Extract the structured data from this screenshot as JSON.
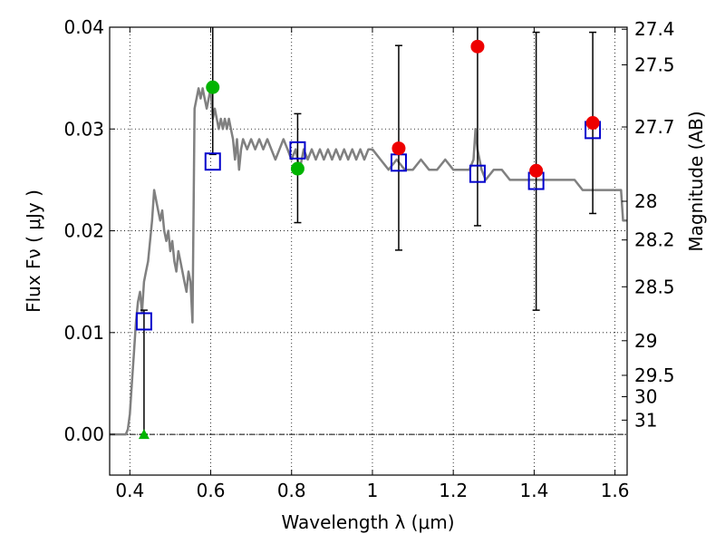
{
  "chart_data": {
    "type": "scatter",
    "title": "",
    "xlabel": "Wavelength  λ (μm)",
    "ylabel_left": "Flux  Fν ( μJy )",
    "ylabel_right": "Magnitude (AB)",
    "xlim": [
      0.35,
      1.63
    ],
    "ylim": [
      -0.004,
      0.04
    ],
    "grid": true,
    "x_ticks": [
      {
        "value": 0.4,
        "label": "0.4"
      },
      {
        "value": 0.6,
        "label": "0.6"
      },
      {
        "value": 0.8,
        "label": "0.8"
      },
      {
        "value": 1.0,
        "label": "1"
      },
      {
        "value": 1.2,
        "label": "1.2"
      },
      {
        "value": 1.4,
        "label": "1.4"
      },
      {
        "value": 1.6,
        "label": "1.6"
      }
    ],
    "y_ticks": [
      {
        "value": 0.0,
        "label": "0.00"
      },
      {
        "value": 0.01,
        "label": "0.01"
      },
      {
        "value": 0.02,
        "label": "0.02"
      },
      {
        "value": 0.03,
        "label": "0.03"
      },
      {
        "value": 0.04,
        "label": "0.04"
      }
    ],
    "mag_ticks": [
      {
        "flux": 0.0398,
        "label": "27.4"
      },
      {
        "flux": 0.0363,
        "label": "27.5"
      },
      {
        "flux": 0.0302,
        "label": "27.7"
      },
      {
        "flux": 0.0229,
        "label": "28"
      },
      {
        "flux": 0.0191,
        "label": "28.2"
      },
      {
        "flux": 0.0145,
        "label": "28.5"
      },
      {
        "flux": 0.0092,
        "label": "29"
      },
      {
        "flux": 0.0058,
        "label": "29.5"
      },
      {
        "flux": 0.0037,
        "label": "30"
      },
      {
        "flux": 0.0014,
        "label": "31"
      }
    ],
    "series": [
      {
        "name": "SED model",
        "kind": "line",
        "color": "#808080",
        "x": [
          0.35,
          0.39,
          0.395,
          0.4,
          0.405,
          0.41,
          0.415,
          0.42,
          0.425,
          0.43,
          0.435,
          0.44,
          0.445,
          0.45,
          0.455,
          0.46,
          0.465,
          0.47,
          0.475,
          0.48,
          0.485,
          0.49,
          0.495,
          0.5,
          0.505,
          0.51,
          0.515,
          0.52,
          0.525,
          0.53,
          0.535,
          0.54,
          0.545,
          0.55,
          0.555,
          0.56,
          0.565,
          0.57,
          0.575,
          0.58,
          0.585,
          0.59,
          0.595,
          0.6,
          0.605,
          0.61,
          0.615,
          0.62,
          0.625,
          0.63,
          0.635,
          0.64,
          0.645,
          0.65,
          0.655,
          0.66,
          0.665,
          0.67,
          0.675,
          0.68,
          0.69,
          0.7,
          0.71,
          0.72,
          0.73,
          0.74,
          0.75,
          0.76,
          0.77,
          0.78,
          0.79,
          0.8,
          0.81,
          0.82,
          0.83,
          0.84,
          0.85,
          0.86,
          0.87,
          0.88,
          0.89,
          0.9,
          0.91,
          0.92,
          0.93,
          0.94,
          0.95,
          0.96,
          0.97,
          0.98,
          0.99,
          1.0,
          1.02,
          1.04,
          1.06,
          1.08,
          1.1,
          1.12,
          1.14,
          1.16,
          1.18,
          1.2,
          1.22,
          1.24,
          1.25,
          1.255,
          1.26,
          1.27,
          1.28,
          1.3,
          1.32,
          1.34,
          1.36,
          1.38,
          1.4,
          1.42,
          1.44,
          1.46,
          1.48,
          1.5,
          1.52,
          1.54,
          1.56,
          1.58,
          1.6,
          1.61,
          1.615,
          1.62,
          1.63
        ],
        "y": [
          0.0,
          0.0,
          0.0005,
          0.002,
          0.005,
          0.008,
          0.011,
          0.013,
          0.014,
          0.012,
          0.015,
          0.016,
          0.017,
          0.019,
          0.021,
          0.024,
          0.023,
          0.022,
          0.021,
          0.022,
          0.02,
          0.019,
          0.02,
          0.018,
          0.019,
          0.017,
          0.016,
          0.018,
          0.017,
          0.016,
          0.015,
          0.014,
          0.016,
          0.015,
          0.011,
          0.032,
          0.033,
          0.034,
          0.033,
          0.034,
          0.033,
          0.032,
          0.033,
          0.034,
          0.031,
          0.032,
          0.031,
          0.03,
          0.031,
          0.03,
          0.031,
          0.03,
          0.031,
          0.03,
          0.029,
          0.027,
          0.029,
          0.026,
          0.028,
          0.029,
          0.028,
          0.029,
          0.028,
          0.029,
          0.028,
          0.029,
          0.028,
          0.027,
          0.028,
          0.029,
          0.028,
          0.027,
          0.028,
          0.026,
          0.028,
          0.027,
          0.028,
          0.027,
          0.028,
          0.027,
          0.028,
          0.027,
          0.028,
          0.027,
          0.028,
          0.027,
          0.028,
          0.027,
          0.028,
          0.027,
          0.028,
          0.028,
          0.027,
          0.026,
          0.027,
          0.026,
          0.026,
          0.027,
          0.026,
          0.026,
          0.027,
          0.026,
          0.026,
          0.026,
          0.027,
          0.03,
          0.028,
          0.026,
          0.025,
          0.026,
          0.026,
          0.025,
          0.025,
          0.025,
          0.025,
          0.025,
          0.025,
          0.025,
          0.025,
          0.025,
          0.024,
          0.024,
          0.024,
          0.024,
          0.024,
          0.024,
          0.024,
          0.021,
          0.021
        ]
      },
      {
        "name": "Model flux (squares)",
        "kind": "square",
        "color": "#0000cc",
        "x": [
          0.435,
          0.605,
          0.815,
          1.065,
          1.26,
          1.405,
          1.545
        ],
        "y": [
          0.0111,
          0.0268,
          0.0279,
          0.0267,
          0.0256,
          0.0249,
          0.0299
        ]
      },
      {
        "name": "Observed detections (green)",
        "kind": "circle",
        "color": "#00b400",
        "x": [
          0.605,
          0.815
        ],
        "y": [
          0.0341,
          0.0261
        ]
      },
      {
        "name": "Observed (red)",
        "kind": "circle",
        "color": "#ee0000",
        "x": [
          1.065,
          1.26,
          1.405,
          1.545
        ],
        "y": [
          0.0281,
          0.0381,
          0.0259,
          0.0306
        ]
      },
      {
        "name": "Upper limit (triangle)",
        "kind": "triangle",
        "color": "#00b400",
        "x": [
          0.435
        ],
        "y": [
          0.0
        ]
      }
    ],
    "error_bars": [
      {
        "x": 0.435,
        "low": 0.0,
        "high": 0.0122
      },
      {
        "x": 0.605,
        "low": 0.0275,
        "high": 0.0405
      },
      {
        "x": 0.815,
        "low": 0.0208,
        "high": 0.0315
      },
      {
        "x": 1.065,
        "low": 0.0181,
        "high": 0.0382
      },
      {
        "x": 1.26,
        "low": 0.0205,
        "high": 0.0405
      },
      {
        "x": 1.405,
        "low": 0.0122,
        "high": 0.0395
      },
      {
        "x": 1.545,
        "low": 0.0217,
        "high": 0.0395
      }
    ]
  }
}
